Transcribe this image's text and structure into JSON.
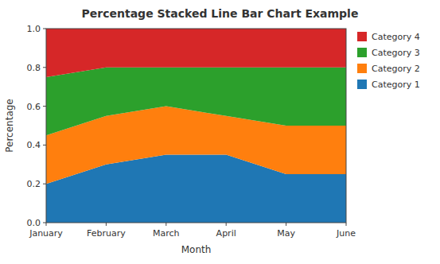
{
  "chart_data": {
    "type": "area",
    "stacked": true,
    "title": "Percentage Stacked Line Bar Chart Example",
    "xlabel": "Month",
    "ylabel": "Percentage",
    "categories": [
      "January",
      "February",
      "March",
      "April",
      "May",
      "June"
    ],
    "series": [
      {
        "name": "Category 1",
        "color": "#1f77b4",
        "values": [
          0.2,
          0.3,
          0.35,
          0.35,
          0.25,
          0.25
        ]
      },
      {
        "name": "Category 2",
        "color": "#ff7f0e",
        "values": [
          0.25,
          0.25,
          0.25,
          0.2,
          0.25,
          0.25
        ]
      },
      {
        "name": "Category 3",
        "color": "#2ca02c",
        "values": [
          0.3,
          0.25,
          0.2,
          0.25,
          0.3,
          0.3
        ]
      },
      {
        "name": "Category 4",
        "color": "#d62728",
        "values": [
          0.25,
          0.2,
          0.2,
          0.2,
          0.2,
          0.2
        ]
      }
    ],
    "ylim": [
      0,
      1.0
    ],
    "yticks": [
      {
        "value": 0,
        "label": "0.0"
      },
      0.2,
      0.4,
      0.6,
      0.8,
      {
        "value": 1,
        "label": "1.0"
      }
    ],
    "grid": false,
    "legend": "right"
  }
}
